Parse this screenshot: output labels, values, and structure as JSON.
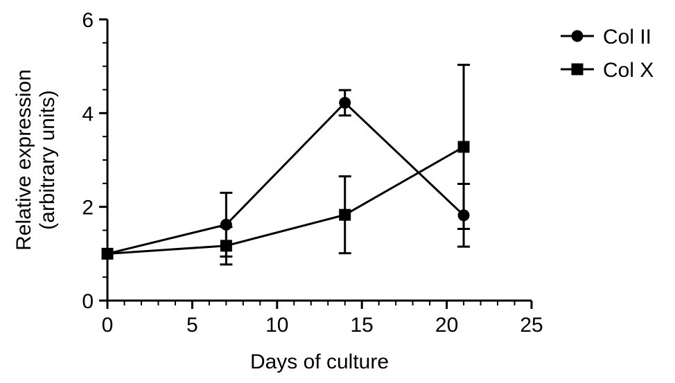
{
  "chart_data": {
    "type": "line",
    "title": "",
    "xlabel": "Days of culture",
    "ylabel_lines": [
      "Relative expression",
      "(arbitrary units)"
    ],
    "xlim": [
      0,
      25
    ],
    "ylim": [
      0,
      6
    ],
    "x_ticks": [
      0,
      5,
      10,
      15,
      20,
      25
    ],
    "y_ticks": [
      0,
      2,
      4,
      6
    ],
    "grid": false,
    "legend_position": "top-right",
    "series": [
      {
        "name": "Col II",
        "marker": "circle",
        "color": "#000000",
        "points": [
          {
            "x": 0,
            "y": 1.0,
            "err": 0.0
          },
          {
            "x": 7,
            "y": 1.62,
            "err": 0.68
          },
          {
            "x": 14,
            "y": 4.22,
            "err": 0.27
          },
          {
            "x": 21,
            "y": 1.82,
            "err": 0.67
          }
        ]
      },
      {
        "name": "Col X",
        "marker": "square",
        "color": "#000000",
        "points": [
          {
            "x": 0,
            "y": 1.0,
            "err": 0.0
          },
          {
            "x": 7,
            "y": 1.17,
            "err": 0.4
          },
          {
            "x": 14,
            "y": 1.83,
            "err": 0.82
          },
          {
            "x": 21,
            "y": 3.28,
            "err": 1.75
          }
        ]
      }
    ]
  }
}
